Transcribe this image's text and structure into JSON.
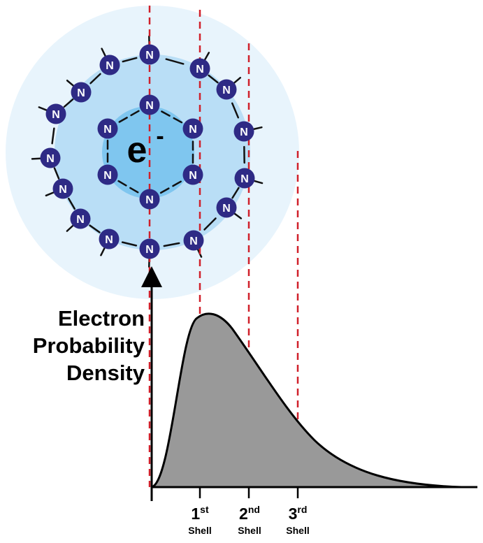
{
  "y_axis_label": [
    "Electron",
    "Probability",
    "Density"
  ],
  "center_label": {
    "base": "e",
    "superscript": "-"
  },
  "atom_symbol": "N",
  "shells": [
    {
      "number": "1",
      "suffix": "st",
      "word": "Shell"
    },
    {
      "number": "2",
      "suffix": "nd",
      "word": "Shell"
    },
    {
      "number": "3",
      "suffix": "rd",
      "word": "Shell"
    }
  ],
  "colors": {
    "outer_cloud": "#e8f4fc",
    "middle_cloud": "#b9def6",
    "inner_cloud": "#7fc6ef",
    "atom_fill": "#2e2a85",
    "curve_fill": "#999999",
    "guide_line": "#d0202a"
  }
}
